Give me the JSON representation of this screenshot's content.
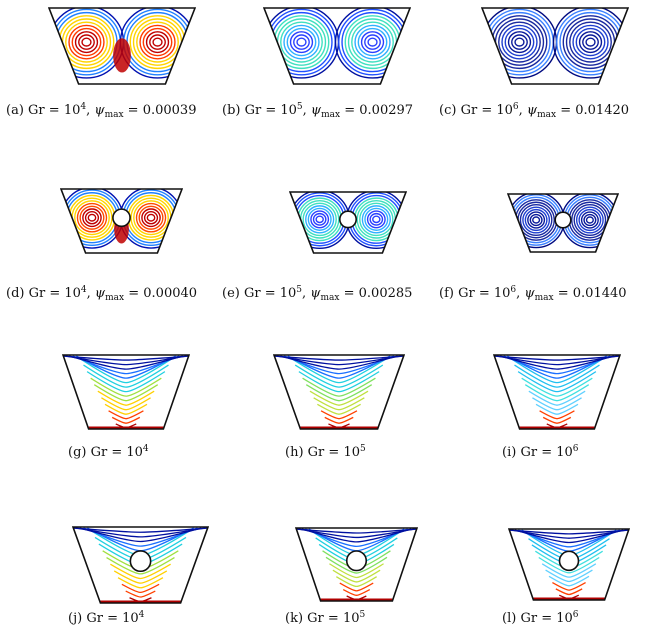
{
  "figure": {
    "panels": [
      {
        "id": "a",
        "kind": "streamline",
        "cavity": "empty",
        "label": "(a)",
        "gr": "Gr",
        "gr_exp": "4",
        "psi": "ψ",
        "psi_sub": "max",
        "psi_value": "0.00039",
        "colors": [
          "#bf0000",
          "#ff3b00",
          "#ffd400",
          "#2080ff",
          "#0010b0"
        ]
      },
      {
        "id": "b",
        "kind": "streamline",
        "cavity": "empty",
        "label": "(b)",
        "gr": "Gr",
        "gr_exp": "5",
        "psi": "ψ",
        "psi_sub": "max",
        "psi_value": "0.00297",
        "colors": [
          "#2a40ff",
          "#30b0ff",
          "#40e0c0",
          "#2050ff",
          "#0010a0"
        ]
      },
      {
        "id": "c",
        "kind": "streamline",
        "cavity": "empty",
        "label": "(c)",
        "gr": "Gr",
        "gr_exp": "6",
        "psi": "ψ",
        "psi_sub": "max",
        "psi_value": "0.01420",
        "colors": [
          "#0a1a9a",
          "#2040d0",
          "#1a2aa0",
          "#3a80ff",
          "#000a80"
        ]
      },
      {
        "id": "d",
        "kind": "streamline",
        "cavity": "cylinder",
        "label": "(d)",
        "gr": "Gr",
        "gr_exp": "4",
        "psi": "ψ",
        "psi_sub": "max",
        "psi_value": "0.00040",
        "colors": [
          "#bf0000",
          "#ff4a00",
          "#ffd400",
          "#2080ff",
          "#0010b0"
        ]
      },
      {
        "id": "e",
        "kind": "streamline",
        "cavity": "cylinder",
        "label": "(e)",
        "gr": "Gr",
        "gr_exp": "5",
        "psi": "ψ",
        "psi_sub": "max",
        "psi_value": "0.00285",
        "colors": [
          "#2a40ff",
          "#30b0ff",
          "#40e0c0",
          "#2050ff",
          "#0010a0"
        ]
      },
      {
        "id": "f",
        "kind": "streamline",
        "cavity": "cylinder",
        "label": "(f)",
        "gr": "Gr",
        "gr_exp": "6",
        "psi": "ψ",
        "psi_sub": "max",
        "psi_value": "0.01440",
        "colors": [
          "#0a1a9a",
          "#2040d0",
          "#1a2aa0",
          "#3a80ff",
          "#000a80"
        ]
      },
      {
        "id": "g",
        "kind": "isotherm",
        "cavity": "empty",
        "label": "(g)",
        "gr": "Gr",
        "gr_exp": "4",
        "colors": [
          "#0010a0",
          "#1a70ff",
          "#20d0e0",
          "#a0e040",
          "#ffd000",
          "#ff4000",
          "#b00000"
        ]
      },
      {
        "id": "h",
        "kind": "isotherm",
        "cavity": "empty",
        "label": "(h)",
        "gr": "Gr",
        "gr_exp": "5",
        "colors": [
          "#0010a0",
          "#1a70ff",
          "#20d0e0",
          "#80e060",
          "#c0e040",
          "#ff4000",
          "#b00000"
        ]
      },
      {
        "id": "i",
        "kind": "isotherm",
        "cavity": "empty",
        "label": "(i)",
        "gr": "Gr",
        "gr_exp": "6",
        "colors": [
          "#0010a0",
          "#1a70ff",
          "#20c0f0",
          "#40e0e0",
          "#60d0ff",
          "#ff4000",
          "#b00000"
        ]
      },
      {
        "id": "j",
        "kind": "isotherm",
        "cavity": "cylinder",
        "label": "(j)",
        "gr": "Gr",
        "gr_exp": "4",
        "colors": [
          "#0010a0",
          "#1a70ff",
          "#20d0e0",
          "#a0e040",
          "#ffd000",
          "#ff4000",
          "#b00000"
        ]
      },
      {
        "id": "k",
        "kind": "isotherm",
        "cavity": "cylinder",
        "label": "(k)",
        "gr": "Gr",
        "gr_exp": "5",
        "colors": [
          "#0010a0",
          "#1a70ff",
          "#20d0e0",
          "#80e060",
          "#c0e040",
          "#ff4000",
          "#b00000"
        ]
      },
      {
        "id": "l",
        "kind": "isotherm",
        "cavity": "cylinder",
        "label": "(l)",
        "gr": "Gr",
        "gr_exp": "6",
        "colors": [
          "#0010a0",
          "#1a70ff",
          "#20c0f0",
          "#40e0e0",
          "#60d0ff",
          "#ff4000",
          "#b00000"
        ]
      }
    ]
  }
}
